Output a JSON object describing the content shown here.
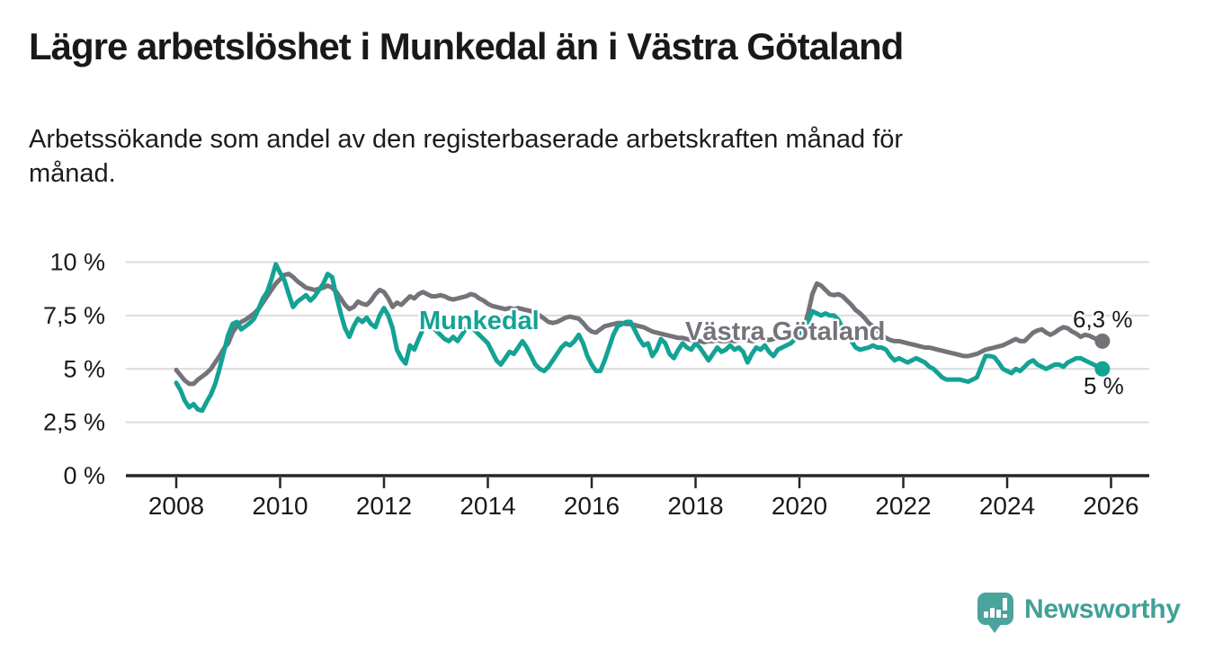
{
  "header": {
    "title": "Lägre arbetslöshet i Munkedal än i Västra Götaland",
    "subtitle_line1": "Arbetssökande som andel av den registerbaserade arbetskraften månad för",
    "subtitle_line2": "månad."
  },
  "branding": {
    "name": "Newsworthy",
    "color": "#41a098"
  },
  "chart_data": {
    "type": "line",
    "unit": "%",
    "x_start_year": 2008,
    "points_per_year": 12,
    "grid": true,
    "x_axis": {
      "tick_labels": [
        "2008",
        "2010",
        "2012",
        "2014",
        "2016",
        "2018",
        "2020",
        "2022",
        "2024",
        "2026"
      ],
      "tick_years": [
        2008,
        2010,
        2012,
        2014,
        2016,
        2018,
        2020,
        2022,
        2024,
        2026
      ]
    },
    "y_axis": {
      "min": 0,
      "max": 10,
      "ticks": [
        {
          "value": 0,
          "label": "0 %"
        },
        {
          "value": 2.5,
          "label": "2,5 %"
        },
        {
          "value": 5,
          "label": "5 %"
        },
        {
          "value": 7.5,
          "label": "7,5 %"
        },
        {
          "value": 10,
          "label": "10 %"
        }
      ]
    },
    "series": [
      {
        "name": "Västra Götaland",
        "color": "#75737a",
        "end_value_label": "6,3 %",
        "end_value": 6.3,
        "values": [
          4.95,
          4.7,
          4.45,
          4.3,
          4.3,
          4.5,
          4.65,
          4.8,
          5.0,
          5.3,
          5.6,
          5.95,
          6.2,
          6.7,
          7.0,
          7.2,
          7.3,
          7.45,
          7.6,
          7.8,
          8.1,
          8.4,
          8.7,
          9.0,
          9.2,
          9.4,
          9.45,
          9.3,
          9.1,
          8.95,
          8.8,
          8.75,
          8.7,
          8.75,
          8.8,
          8.9,
          8.8,
          8.6,
          8.3,
          8.0,
          7.8,
          7.9,
          8.15,
          8.05,
          8.0,
          8.2,
          8.5,
          8.7,
          8.6,
          8.3,
          7.9,
          8.1,
          8.0,
          8.2,
          8.4,
          8.3,
          8.5,
          8.6,
          8.5,
          8.4,
          8.4,
          8.45,
          8.4,
          8.3,
          8.25,
          8.3,
          8.35,
          8.4,
          8.5,
          8.45,
          8.3,
          8.2,
          8.05,
          7.95,
          7.9,
          7.85,
          7.8,
          7.85,
          7.8,
          7.85,
          7.8,
          7.75,
          7.7,
          7.6,
          7.5,
          7.35,
          7.2,
          7.15,
          7.2,
          7.3,
          7.4,
          7.45,
          7.4,
          7.35,
          7.15,
          6.9,
          6.75,
          6.7,
          6.85,
          7.0,
          7.05,
          7.1,
          7.15,
          7.15,
          7.1,
          7.1,
          7.05,
          7.0,
          6.95,
          6.85,
          6.75,
          6.7,
          6.65,
          6.6,
          6.55,
          6.5,
          6.45,
          6.45,
          6.4,
          6.35,
          6.35,
          6.3,
          6.25,
          6.3,
          6.3,
          6.35,
          6.3,
          6.3,
          6.35,
          6.3,
          6.35,
          6.4,
          6.35,
          6.3,
          6.35,
          6.4,
          6.4,
          6.35,
          6.4,
          6.45,
          6.5,
          6.5,
          6.55,
          6.6,
          6.7,
          6.9,
          7.6,
          8.5,
          9.0,
          8.9,
          8.7,
          8.5,
          8.45,
          8.5,
          8.4,
          8.2,
          8.0,
          7.75,
          7.6,
          7.4,
          7.15,
          7.0,
          6.8,
          6.6,
          6.45,
          6.35,
          6.3,
          6.3,
          6.25,
          6.2,
          6.15,
          6.1,
          6.05,
          6.0,
          6.0,
          5.95,
          5.9,
          5.85,
          5.8,
          5.75,
          5.7,
          5.65,
          5.6,
          5.6,
          5.65,
          5.7,
          5.8,
          5.9,
          5.95,
          6.0,
          6.05,
          6.1,
          6.2,
          6.3,
          6.4,
          6.3,
          6.3,
          6.5,
          6.7,
          6.8,
          6.85,
          6.7,
          6.6,
          6.7,
          6.85,
          6.95,
          6.9,
          6.75,
          6.65,
          6.5,
          6.6,
          6.55,
          6.45,
          6.35,
          6.3
        ]
      },
      {
        "name": "Munkedal",
        "color": "#14a295",
        "end_value_label": "5 %",
        "end_value": 5.0,
        "values": [
          4.35,
          4.0,
          3.5,
          3.2,
          3.35,
          3.1,
          3.05,
          3.45,
          3.8,
          4.3,
          5.0,
          5.8,
          6.6,
          7.1,
          7.2,
          6.85,
          7.0,
          7.15,
          7.35,
          7.8,
          8.3,
          8.6,
          9.2,
          9.9,
          9.5,
          9.15,
          8.5,
          7.9,
          8.15,
          8.3,
          8.45,
          8.2,
          8.4,
          8.7,
          9.0,
          9.45,
          9.3,
          8.4,
          7.6,
          6.9,
          6.5,
          7.0,
          7.35,
          7.2,
          7.4,
          7.1,
          6.95,
          7.5,
          7.85,
          7.5,
          6.9,
          5.9,
          5.5,
          5.25,
          6.1,
          5.9,
          6.4,
          6.85,
          7.1,
          6.95,
          6.8,
          6.6,
          6.4,
          6.3,
          6.5,
          6.3,
          6.6,
          6.9,
          7.0,
          6.8,
          6.6,
          6.4,
          6.2,
          5.8,
          5.4,
          5.2,
          5.5,
          5.8,
          5.7,
          6.0,
          6.3,
          6.0,
          5.6,
          5.2,
          5.0,
          4.9,
          5.1,
          5.4,
          5.7,
          6.0,
          6.2,
          6.1,
          6.3,
          6.6,
          6.2,
          5.6,
          5.2,
          4.9,
          4.9,
          5.4,
          6.0,
          6.6,
          7.0,
          7.1,
          7.2,
          7.2,
          6.8,
          6.4,
          6.1,
          6.2,
          5.6,
          5.9,
          6.4,
          6.2,
          5.7,
          5.5,
          5.9,
          6.2,
          6.0,
          5.9,
          6.2,
          6.0,
          5.7,
          5.4,
          5.7,
          6.0,
          5.8,
          5.9,
          6.1,
          5.9,
          6.0,
          5.8,
          5.3,
          5.7,
          6.0,
          5.9,
          6.1,
          5.8,
          5.6,
          5.9,
          6.0,
          6.1,
          6.2,
          6.4,
          6.6,
          6.8,
          7.2,
          7.7,
          7.6,
          7.5,
          7.6,
          7.5,
          7.5,
          7.3,
          6.9,
          6.6,
          6.3,
          6.0,
          5.9,
          5.95,
          6.0,
          6.1,
          6.0,
          6.0,
          5.9,
          5.6,
          5.4,
          5.5,
          5.4,
          5.3,
          5.4,
          5.5,
          5.4,
          5.3,
          5.1,
          5.0,
          4.8,
          4.6,
          4.5,
          4.5,
          4.5,
          4.5,
          4.45,
          4.4,
          4.5,
          4.6,
          5.1,
          5.6,
          5.6,
          5.55,
          5.3,
          5.0,
          4.9,
          4.8,
          5.0,
          4.9,
          5.1,
          5.3,
          5.4,
          5.2,
          5.1,
          5.0,
          5.1,
          5.2,
          5.2,
          5.1,
          5.3,
          5.4,
          5.5,
          5.5,
          5.4,
          5.3,
          5.2,
          5.1,
          5.0
        ]
      }
    ]
  }
}
